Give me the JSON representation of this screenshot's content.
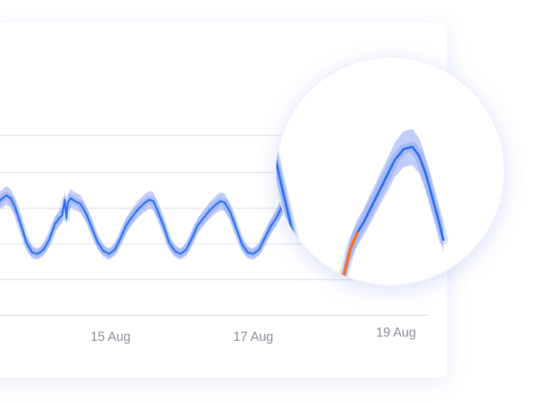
{
  "chart_data": {
    "type": "line",
    "title": "",
    "xlabel": "",
    "ylabel": "",
    "x_tick_labels": [
      "15 Aug",
      "17 Aug",
      "19 Aug"
    ],
    "x_tick_positions_days": [
      1.5,
      3.5,
      5.5
    ],
    "x_range_days": [
      0,
      6.1
    ],
    "y_range": [
      0,
      1
    ],
    "grid": true,
    "legend": "none",
    "series": [
      {
        "role": "main",
        "points": [
          [
            0.0,
            0.33
          ],
          [
            0.08,
            0.4
          ],
          [
            0.16,
            0.45
          ],
          [
            0.24,
            0.48
          ],
          [
            0.3,
            0.46
          ],
          [
            0.36,
            0.4
          ],
          [
            0.44,
            0.28
          ],
          [
            0.52,
            0.15
          ],
          [
            0.6,
            0.08
          ],
          [
            0.68,
            0.07
          ],
          [
            0.76,
            0.1
          ],
          [
            0.84,
            0.17
          ],
          [
            0.92,
            0.28
          ],
          [
            0.98,
            0.32
          ],
          [
            1.02,
            0.34
          ],
          [
            1.06,
            0.45
          ],
          [
            1.08,
            0.32
          ],
          [
            1.1,
            0.43
          ],
          [
            1.14,
            0.46
          ],
          [
            1.2,
            0.44
          ],
          [
            1.28,
            0.42
          ],
          [
            1.36,
            0.35
          ],
          [
            1.44,
            0.25
          ],
          [
            1.52,
            0.15
          ],
          [
            1.6,
            0.09
          ],
          [
            1.68,
            0.07
          ],
          [
            1.76,
            0.1
          ],
          [
            1.84,
            0.18
          ],
          [
            1.92,
            0.27
          ],
          [
            2.0,
            0.33
          ],
          [
            2.08,
            0.38
          ],
          [
            2.16,
            0.42
          ],
          [
            2.24,
            0.45
          ],
          [
            2.3,
            0.44
          ],
          [
            2.36,
            0.37
          ],
          [
            2.44,
            0.27
          ],
          [
            2.52,
            0.15
          ],
          [
            2.6,
            0.09
          ],
          [
            2.68,
            0.07
          ],
          [
            2.76,
            0.1
          ],
          [
            2.84,
            0.18
          ],
          [
            2.92,
            0.27
          ],
          [
            3.0,
            0.32
          ],
          [
            3.08,
            0.37
          ],
          [
            3.16,
            0.41
          ],
          [
            3.24,
            0.44
          ],
          [
            3.3,
            0.43
          ],
          [
            3.38,
            0.36
          ],
          [
            3.46,
            0.25
          ],
          [
            3.54,
            0.14
          ],
          [
            3.62,
            0.08
          ],
          [
            3.7,
            0.07
          ],
          [
            3.78,
            0.1
          ],
          [
            3.86,
            0.18
          ],
          [
            3.94,
            0.26
          ],
          [
            4.02,
            0.32
          ],
          [
            4.1,
            0.4
          ],
          [
            4.16,
            0.5
          ],
          [
            4.2,
            0.44
          ],
          [
            4.26,
            0.56
          ],
          [
            4.32,
            0.66
          ],
          [
            4.38,
            0.78
          ],
          [
            4.44,
            0.86
          ],
          [
            4.5,
            0.83
          ],
          [
            4.56,
            0.76
          ],
          [
            4.62,
            0.62
          ],
          [
            4.7,
            0.45
          ],
          [
            4.78,
            0.28
          ],
          [
            4.86,
            0.16
          ],
          [
            4.94,
            0.1
          ],
          [
            5.02,
            0.04
          ],
          [
            5.1,
            0.04
          ],
          [
            5.14,
            0.06
          ],
          [
            5.2,
            0.18
          ],
          [
            5.26,
            0.3
          ],
          [
            5.32,
            0.37
          ],
          [
            5.38,
            0.42
          ],
          [
            5.44,
            0.48
          ],
          [
            5.5,
            0.54
          ],
          [
            5.58,
            0.62
          ],
          [
            5.66,
            0.7
          ],
          [
            5.74,
            0.75
          ],
          [
            5.82,
            0.76
          ],
          [
            5.88,
            0.72
          ],
          [
            5.94,
            0.64
          ],
          [
            6.0,
            0.53
          ],
          [
            6.06,
            0.42
          ],
          [
            6.1,
            0.34
          ]
        ]
      },
      {
        "role": "highlight",
        "points": [
          [
            5.02,
            0.04
          ],
          [
            5.1,
            0.04
          ],
          [
            5.14,
            0.06
          ],
          [
            5.2,
            0.18
          ],
          [
            5.26,
            0.3
          ],
          [
            5.32,
            0.37
          ]
        ]
      }
    ],
    "band_half_width": 0.06,
    "colors": {
      "line": "#2f6ff0",
      "highlight": "#ff6f1a",
      "band": "#aebcf5",
      "grid": "#e4e6ee",
      "axis": "#d9dce6",
      "tick_text": "#8a8f99"
    }
  }
}
